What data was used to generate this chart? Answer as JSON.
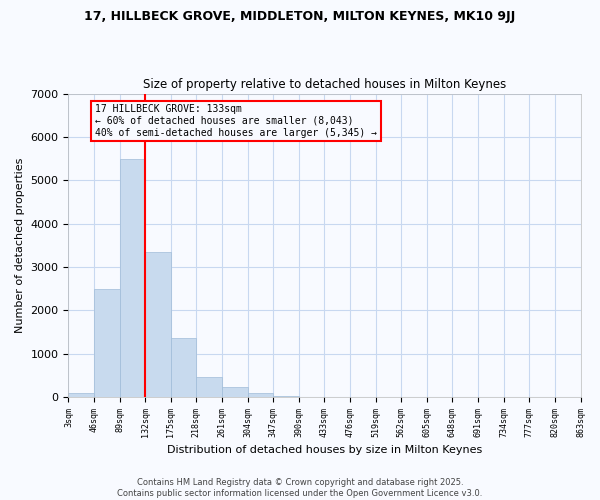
{
  "title_line1": "17, HILLBECK GROVE, MIDDLETON, MILTON KEYNES, MK10 9JJ",
  "title_line2": "Size of property relative to detached houses in Milton Keynes",
  "xlabel": "Distribution of detached houses by size in Milton Keynes",
  "ylabel": "Number of detached properties",
  "footer_line1": "Contains HM Land Registry data © Crown copyright and database right 2025.",
  "footer_line2": "Contains public sector information licensed under the Open Government Licence v3.0.",
  "bar_color": "#c8daee",
  "bar_edge_color": "#a0bcd8",
  "grid_color": "#c8d8f0",
  "background_color": "#f8faff",
  "annotation_box_color": "red",
  "vline_color": "red",
  "annotation_text": "17 HILLBECK GROVE: 133sqm\n← 60% of detached houses are smaller (8,043)\n40% of semi-detached houses are larger (5,345) →",
  "bin_edges": [
    3,
    46,
    89,
    132,
    175,
    218,
    261,
    304,
    347,
    390,
    433,
    476,
    519,
    562,
    605,
    648,
    691,
    734,
    777,
    820,
    863
  ],
  "bin_labels": [
    "3sqm",
    "46sqm",
    "89sqm",
    "132sqm",
    "175sqm",
    "218sqm",
    "261sqm",
    "304sqm",
    "347sqm",
    "390sqm",
    "433sqm",
    "476sqm",
    "519sqm",
    "562sqm",
    "605sqm",
    "648sqm",
    "691sqm",
    "734sqm",
    "777sqm",
    "820sqm",
    "863sqm"
  ],
  "values": [
    100,
    2500,
    5500,
    3350,
    1350,
    450,
    220,
    80,
    30,
    0,
    0,
    0,
    0,
    0,
    0,
    0,
    0,
    0,
    0,
    0
  ],
  "vline_x": 132,
  "ylim": [
    0,
    7000
  ],
  "yticks": [
    0,
    1000,
    2000,
    3000,
    4000,
    5000,
    6000,
    7000
  ]
}
